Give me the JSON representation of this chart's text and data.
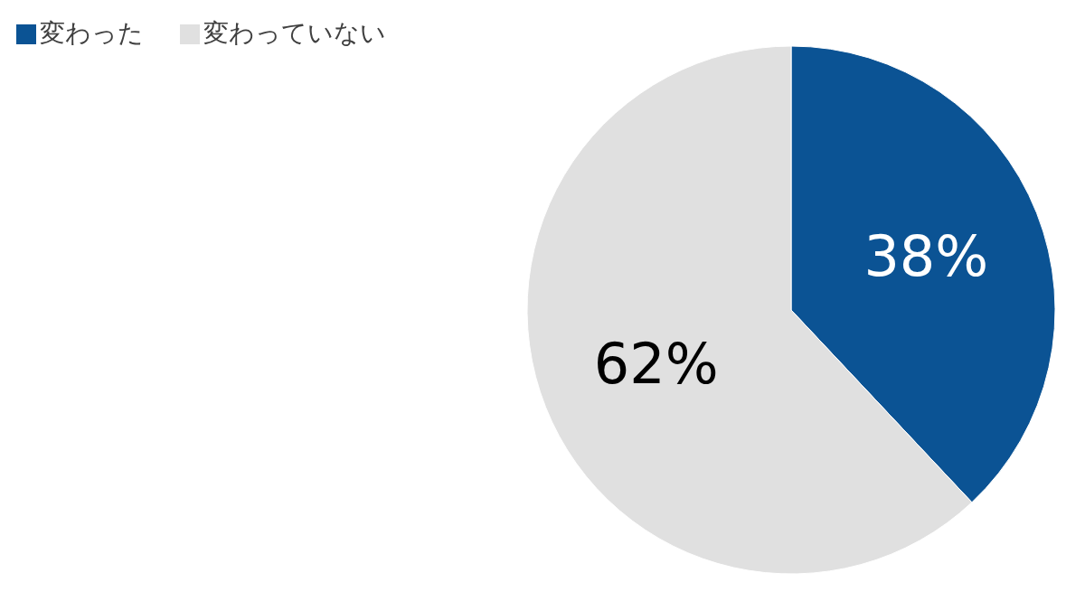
{
  "chart_data": {
    "type": "pie",
    "categories": [
      "変わった",
      "変わっていない"
    ],
    "values": [
      38,
      62
    ],
    "colors": [
      "#0b5394",
      "#e0e0e0"
    ],
    "value_labels": [
      "38%",
      "62%"
    ],
    "legend": "top left"
  }
}
